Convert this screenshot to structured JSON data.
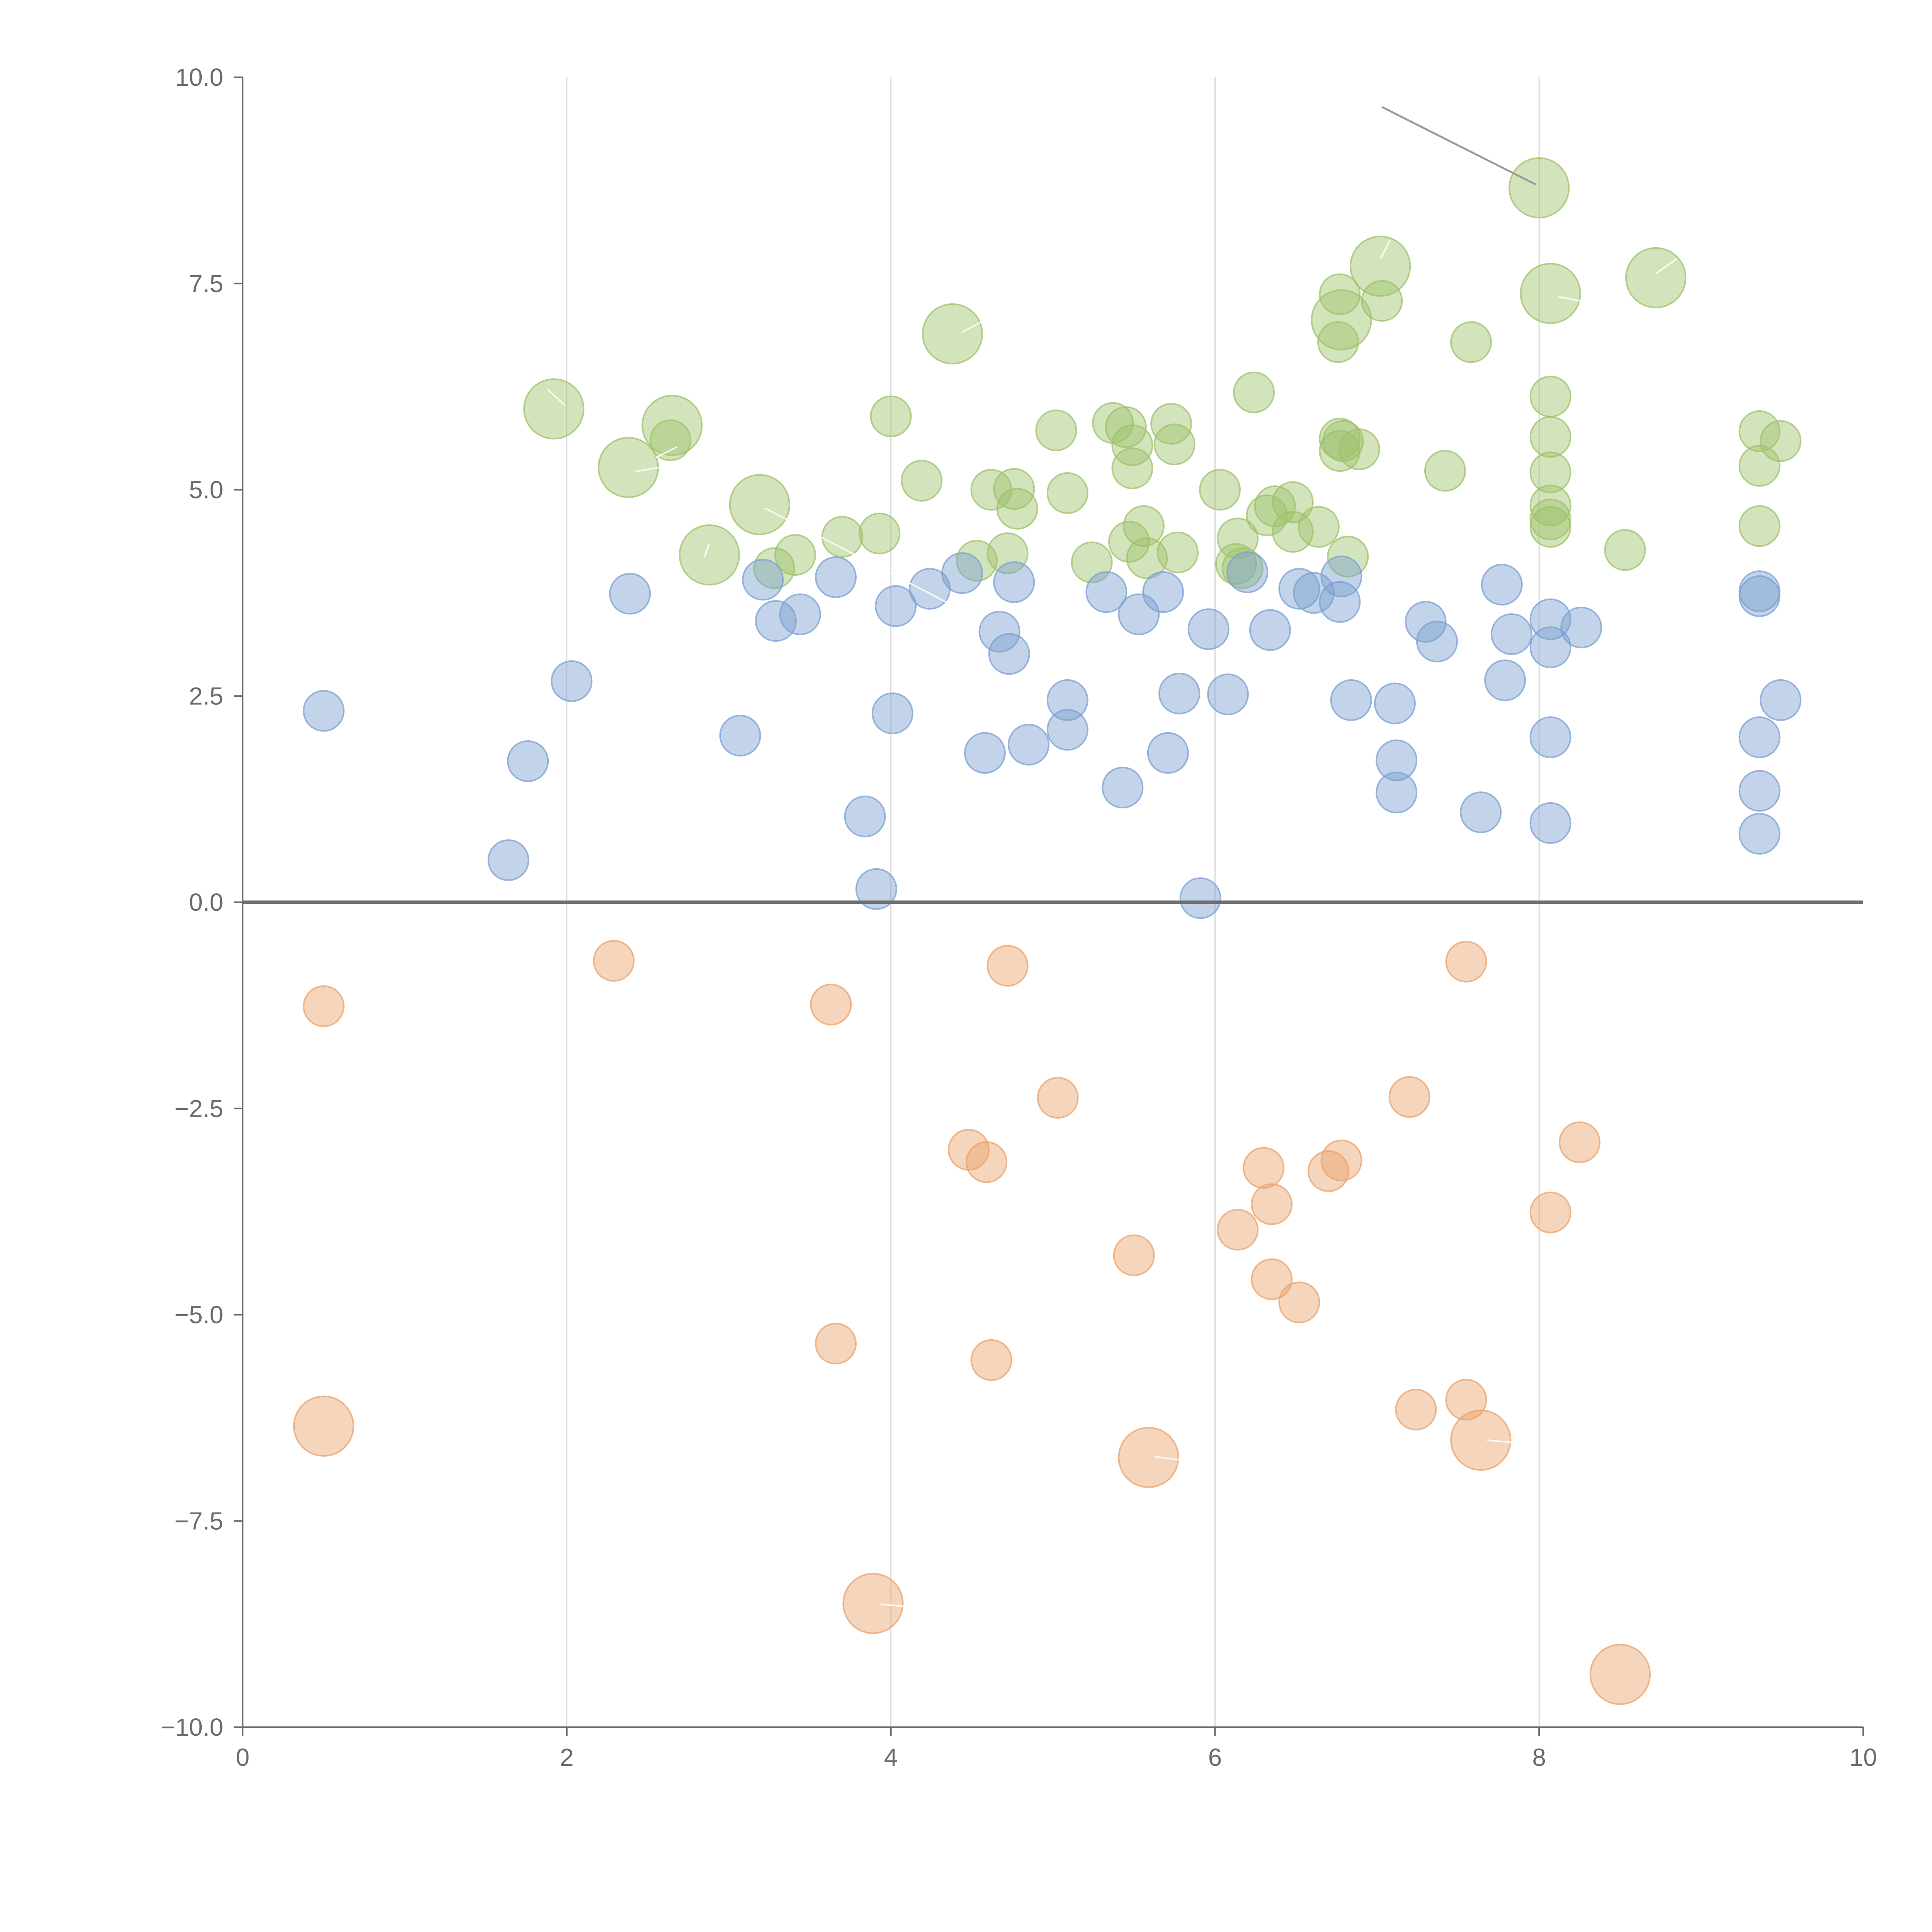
{
  "chart_data": {
    "type": "scatter",
    "title": "",
    "xlabel": "",
    "ylabel": "",
    "xlim": [
      0,
      10
    ],
    "ylim": [
      -10,
      10
    ],
    "x_ticks": [
      0,
      2,
      4,
      6,
      8,
      10
    ],
    "x_tick_labels": [
      "0",
      "2",
      "4",
      "6",
      "8",
      "10"
    ],
    "y_ticks": [
      10,
      7.5,
      5,
      2.5,
      0,
      -2.5,
      -5,
      -7.5,
      -10
    ],
    "y_tick_labels": [
      "10.0",
      "7.5",
      "5.0",
      "2.5",
      "0.0",
      "−2.5",
      "−5.0",
      "−7.5",
      "−10.0"
    ],
    "x_grid": true,
    "y_grid": false,
    "reference_line_y": 0,
    "series": [
      {
        "name": "green",
        "color": "#9dc16a",
        "points": [
          [
            1.92,
            5.98,
            2.2
          ],
          [
            2.38,
            5.27,
            2.2
          ],
          [
            2.65,
            5.78,
            2.2
          ],
          [
            2.88,
            4.21,
            2.2
          ],
          [
            3.19,
            4.82,
            2.2
          ],
          [
            4.38,
            6.89,
            2.2
          ],
          [
            7.02,
            7.71,
            2.2
          ],
          [
            6.78,
            7.06,
            2.2
          ],
          [
            8.07,
            7.38,
            2.2
          ],
          [
            8.72,
            7.57,
            2.2
          ],
          [
            8.0,
            8.66,
            2.2
          ],
          [
            2.64,
            5.6,
            1
          ],
          [
            3.28,
            4.05,
            1
          ],
          [
            3.41,
            4.21,
            1
          ],
          [
            3.7,
            4.43,
            1
          ],
          [
            3.93,
            4.47,
            1
          ],
          [
            4.0,
            5.89,
            1
          ],
          [
            4.19,
            5.11,
            1
          ],
          [
            4.53,
            4.14,
            1
          ],
          [
            4.62,
            5.0,
            1
          ],
          [
            4.72,
            4.23,
            1
          ],
          [
            4.76,
            5.01,
            1
          ],
          [
            4.78,
            4.77,
            1
          ],
          [
            5.02,
            5.72,
            1
          ],
          [
            5.09,
            4.96,
            1
          ],
          [
            5.24,
            4.12,
            1
          ],
          [
            5.37,
            5.81,
            1
          ],
          [
            5.45,
            5.76,
            1
          ],
          [
            5.49,
            5.54,
            1
          ],
          [
            5.49,
            5.26,
            1
          ],
          [
            5.47,
            4.37,
            1
          ],
          [
            5.56,
            4.56,
            1
          ],
          [
            5.58,
            4.17,
            1
          ],
          [
            5.73,
            5.8,
            1
          ],
          [
            5.75,
            5.55,
            1
          ],
          [
            5.77,
            4.24,
            1
          ],
          [
            6.03,
            5.0,
            1
          ],
          [
            6.14,
            4.41,
            1
          ],
          [
            6.13,
            4.1,
            1
          ],
          [
            6.17,
            4.05,
            1
          ],
          [
            6.24,
            6.18,
            1
          ],
          [
            6.32,
            4.69,
            1
          ],
          [
            6.37,
            4.8,
            1
          ],
          [
            6.48,
            4.85,
            1
          ],
          [
            6.48,
            4.49,
            1
          ],
          [
            6.64,
            4.55,
            1
          ],
          [
            6.77,
            5.62,
            1
          ],
          [
            6.77,
            5.47,
            1
          ],
          [
            6.76,
            6.79,
            1
          ],
          [
            6.77,
            7.37,
            1
          ],
          [
            6.79,
            5.59,
            1
          ],
          [
            6.82,
            4.19,
            1
          ],
          [
            6.89,
            5.49,
            1
          ],
          [
            7.03,
            7.29,
            1
          ],
          [
            7.42,
            5.23,
            1
          ],
          [
            7.58,
            6.79,
            1
          ],
          [
            8.07,
            6.13,
            1
          ],
          [
            8.07,
            5.64,
            1
          ],
          [
            8.07,
            5.21,
            1
          ],
          [
            8.07,
            4.81,
            1
          ],
          [
            8.07,
            4.64,
            1
          ],
          [
            8.07,
            4.55,
            1
          ],
          [
            8.53,
            4.27,
            1
          ],
          [
            9.36,
            5.71,
            1
          ],
          [
            9.36,
            5.29,
            1
          ],
          [
            9.49,
            5.59,
            1
          ],
          [
            9.36,
            4.56,
            1
          ]
        ]
      },
      {
        "name": "blue",
        "color": "#7b9fd1",
        "points": [
          [
            0.5,
            2.32,
            1
          ],
          [
            1.64,
            0.51,
            1
          ],
          [
            1.76,
            1.71,
            1
          ],
          [
            2.03,
            2.68,
            1
          ],
          [
            2.39,
            3.74,
            1
          ],
          [
            3.07,
            2.02,
            1
          ],
          [
            3.21,
            3.91,
            1
          ],
          [
            3.29,
            3.41,
            1
          ],
          [
            3.44,
            3.49,
            1
          ],
          [
            3.66,
            3.94,
            1
          ],
          [
            3.84,
            1.04,
            1
          ],
          [
            3.91,
            0.16,
            1
          ],
          [
            4.01,
            2.29,
            1
          ],
          [
            4.03,
            3.59,
            1
          ],
          [
            4.24,
            3.8,
            1
          ],
          [
            4.44,
            3.99,
            1
          ],
          [
            4.58,
            1.81,
            1
          ],
          [
            4.67,
            3.28,
            1
          ],
          [
            4.73,
            3.01,
            1
          ],
          [
            4.76,
            3.88,
            1
          ],
          [
            4.85,
            1.91,
            1
          ],
          [
            5.09,
            2.45,
            1
          ],
          [
            5.09,
            2.09,
            1
          ],
          [
            5.33,
            3.76,
            1
          ],
          [
            5.43,
            1.39,
            1
          ],
          [
            5.53,
            3.49,
            1
          ],
          [
            5.68,
            3.76,
            1
          ],
          [
            5.71,
            1.81,
            1
          ],
          [
            5.78,
            2.53,
            1
          ],
          [
            5.91,
            0.05,
            1
          ],
          [
            5.96,
            3.31,
            1
          ],
          [
            6.08,
            2.52,
            1
          ],
          [
            6.2,
            4.0,
            1
          ],
          [
            6.34,
            3.3,
            1
          ],
          [
            6.52,
            3.8,
            1
          ],
          [
            6.61,
            3.75,
            1
          ],
          [
            6.77,
            3.64,
            1
          ],
          [
            6.78,
            3.95,
            1
          ],
          [
            6.84,
            2.45,
            1
          ],
          [
            7.11,
            2.41,
            1
          ],
          [
            7.12,
            1.72,
            1
          ],
          [
            7.12,
            1.33,
            1
          ],
          [
            7.3,
            3.4,
            1
          ],
          [
            7.37,
            3.16,
            1
          ],
          [
            7.64,
            1.09,
            1
          ],
          [
            7.77,
            3.85,
            1
          ],
          [
            7.79,
            2.69,
            1
          ],
          [
            7.83,
            3.25,
            1
          ],
          [
            8.07,
            3.43,
            1
          ],
          [
            8.07,
            3.09,
            1
          ],
          [
            8.07,
            2.0,
            1
          ],
          [
            8.07,
            0.96,
            1
          ],
          [
            8.26,
            3.33,
            1
          ],
          [
            9.36,
            3.77,
            1
          ],
          [
            9.36,
            3.71,
            1
          ],
          [
            9.36,
            2.0,
            1
          ],
          [
            9.36,
            1.35,
            1
          ],
          [
            9.36,
            0.83,
            1
          ],
          [
            9.49,
            2.45,
            1
          ]
        ]
      },
      {
        "name": "orange",
        "color": "#e9a26b",
        "points": [
          [
            0.5,
            -1.26,
            1
          ],
          [
            2.29,
            -0.71,
            1
          ],
          [
            3.63,
            -1.24,
            1
          ],
          [
            3.66,
            -5.35,
            1
          ],
          [
            4.48,
            -3.0,
            1
          ],
          [
            4.59,
            -3.15,
            1
          ],
          [
            4.62,
            -5.55,
            1
          ],
          [
            4.72,
            -0.77,
            1
          ],
          [
            5.03,
            -2.37,
            1
          ],
          [
            5.5,
            -4.28,
            1
          ],
          [
            6.14,
            -3.97,
            1
          ],
          [
            6.3,
            -3.22,
            1
          ],
          [
            6.35,
            -3.66,
            1
          ],
          [
            6.35,
            -4.57,
            1
          ],
          [
            6.52,
            -4.85,
            1
          ],
          [
            6.7,
            -3.26,
            1
          ],
          [
            6.78,
            -3.13,
            1
          ],
          [
            7.2,
            -2.36,
            1
          ],
          [
            7.24,
            -6.15,
            1
          ],
          [
            7.55,
            -6.03,
            1
          ],
          [
            7.55,
            -0.72,
            1
          ],
          [
            8.07,
            -3.76,
            1
          ],
          [
            8.25,
            -2.91,
            1
          ],
          [
            0.5,
            -6.35,
            2.2
          ],
          [
            3.89,
            -8.5,
            2.2
          ],
          [
            5.59,
            -6.73,
            2.2
          ],
          [
            7.64,
            -6.52,
            2.2
          ],
          [
            8.5,
            -9.36,
            2.2
          ]
        ]
      }
    ],
    "annotation_leaders": [
      {
        "from": [
          7.03,
          9.64
        ],
        "to": [
          7.98,
          8.7
        ],
        "color": "#9a9a9a"
      },
      {
        "from": [
          1.88,
          6.22
        ],
        "to": [
          1.99,
          6.02
        ],
        "color": "#ffffff"
      },
      {
        "from": [
          2.68,
          5.52
        ],
        "to": [
          2.55,
          5.39
        ],
        "color": "#ffffff"
      },
      {
        "from": [
          2.42,
          5.22
        ],
        "to": [
          2.57,
          5.27
        ],
        "color": "#ffffff"
      },
      {
        "from": [
          2.85,
          4.19
        ],
        "to": [
          2.88,
          4.35
        ],
        "color": "#ffffff"
      },
      {
        "from": [
          3.22,
          4.78
        ],
        "to": [
          4.35,
          3.63
        ],
        "color": "#ffffff"
      },
      {
        "from": [
          4.44,
          6.91
        ],
        "to": [
          4.6,
          7.08
        ],
        "color": "#ffffff"
      },
      {
        "from": [
          7.02,
          7.8
        ],
        "to": [
          7.08,
          8.02
        ],
        "color": "#ffffff"
      },
      {
        "from": [
          8.12,
          7.34
        ],
        "to": [
          8.3,
          7.27
        ],
        "color": "#ffffff"
      },
      {
        "from": [
          8.72,
          7.62
        ],
        "to": [
          8.85,
          7.8
        ],
        "color": "#ffffff"
      },
      {
        "from": [
          3.93,
          -8.51
        ],
        "to": [
          4.12,
          -8.54
        ],
        "color": "#ffffff"
      },
      {
        "from": [
          5.63,
          -6.72
        ],
        "to": [
          5.86,
          -6.78
        ],
        "color": "#ffffff"
      },
      {
        "from": [
          7.68,
          -6.52
        ],
        "to": [
          7.96,
          -6.57
        ],
        "color": "#ffffff"
      }
    ]
  }
}
